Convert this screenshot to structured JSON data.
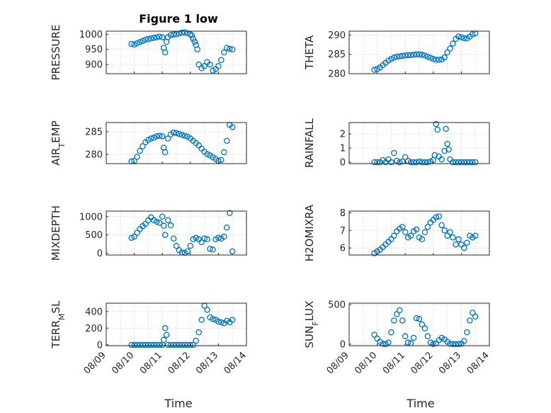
{
  "title": "Figure 1 low",
  "xlabel": "Time",
  "colors": {
    "marker": "#0072bd",
    "axis": "#262626",
    "grid": "#d4d4d4"
  },
  "chart_data": [
    {
      "type": "scatter",
      "ylabel": "PRESSURE",
      "ylabel_sub": "",
      "ylabel_rest": "",
      "xlim": [
        9.0,
        14.0
      ],
      "ylim": [
        870,
        1010
      ],
      "yticks": [
        900,
        950,
        1000
      ],
      "yticklabels": [
        "900",
        "950",
        "1000"
      ],
      "grid": true,
      "x": [
        9.9,
        10.0,
        10.1,
        10.2,
        10.3,
        10.4,
        10.5,
        10.6,
        10.7,
        10.8,
        10.9,
        11.0,
        11.05,
        11.1,
        11.15,
        11.2,
        11.3,
        11.4,
        11.5,
        11.6,
        11.7,
        11.8,
        11.9,
        12.0,
        12.05,
        12.1,
        12.15,
        12.2,
        12.25,
        12.3,
        12.4,
        12.5,
        12.6,
        12.7,
        12.8,
        12.9,
        13.0,
        13.1,
        13.2,
        13.3,
        13.4,
        13.5
      ],
      "y": [
        968,
        966,
        970,
        974,
        978,
        982,
        984,
        986,
        988,
        990,
        992,
        990,
        955,
        940,
        975,
        990,
        997,
        999,
        1000,
        1002,
        1005,
        1006,
        1003,
        1000,
        995,
        985,
        975,
        965,
        950,
        900,
        888,
        895,
        908,
        900,
        880,
        885,
        895,
        915,
        940,
        955,
        952,
        950
      ]
    },
    {
      "type": "scatter",
      "ylabel": "THETA",
      "ylabel_sub": "",
      "ylabel_rest": "",
      "xlim": [
        9.0,
        14.0
      ],
      "ylim": [
        280,
        291
      ],
      "yticks": [
        280,
        285,
        290
      ],
      "yticklabels": [
        "280",
        "285",
        "290"
      ],
      "grid": true,
      "x": [
        9.9,
        10.0,
        10.1,
        10.2,
        10.3,
        10.4,
        10.5,
        10.6,
        10.7,
        10.8,
        10.9,
        11.0,
        11.1,
        11.2,
        11.3,
        11.4,
        11.5,
        11.6,
        11.7,
        11.8,
        11.9,
        12.0,
        12.1,
        12.2,
        12.3,
        12.4,
        12.5,
        12.6,
        12.7,
        12.8,
        12.9,
        13.0,
        13.1,
        13.2,
        13.3,
        13.4,
        13.5
      ],
      "y": [
        281,
        281.2,
        281.6,
        282.2,
        282.8,
        283.4,
        283.8,
        284.2,
        284.4,
        284.5,
        284.6,
        284.7,
        284.8,
        284.8,
        284.9,
        285,
        285,
        284.9,
        284.7,
        284.4,
        284.1,
        283.8,
        283.6,
        283.6,
        283.7,
        284.2,
        285.5,
        286.5,
        287.8,
        289,
        289.6,
        289.4,
        289.2,
        289.1,
        289.6,
        290.2,
        290.4
      ]
    },
    {
      "type": "scatter",
      "ylabel": "AIR",
      "ylabel_sub": "T",
      "ylabel_rest": "EMP",
      "xlim": [
        9.0,
        14.0
      ],
      "ylim": [
        278,
        287
      ],
      "yticks": [
        280,
        285
      ],
      "yticklabels": [
        "280",
        "285"
      ],
      "grid": true,
      "x": [
        9.9,
        10.0,
        10.1,
        10.2,
        10.3,
        10.4,
        10.5,
        10.6,
        10.7,
        10.8,
        10.9,
        11.0,
        11.05,
        11.1,
        11.2,
        11.3,
        11.4,
        11.5,
        11.6,
        11.7,
        11.8,
        11.9,
        12.0,
        12.1,
        12.2,
        12.3,
        12.4,
        12.5,
        12.6,
        12.7,
        12.8,
        12.9,
        13.0,
        13.1,
        13.2,
        13.3,
        13.4,
        13.5
      ],
      "y": [
        278.5,
        278.6,
        279.5,
        280.8,
        281.8,
        282.7,
        283.2,
        283.5,
        283.7,
        284.0,
        284.1,
        284.0,
        281.5,
        280.5,
        283.5,
        284.4,
        284.8,
        284.7,
        284.5,
        284.3,
        284.1,
        283.9,
        283.5,
        283.0,
        282.5,
        282.0,
        281.3,
        280.6,
        280.1,
        279.8,
        279.4,
        279.0,
        278.6,
        278.8,
        280.5,
        283.0,
        286.5,
        286.0
      ]
    },
    {
      "type": "scatter",
      "ylabel": "RAINFALL",
      "ylabel_sub": "",
      "ylabel_rest": "",
      "xlim": [
        9.0,
        14.0
      ],
      "ylim": [
        -0.1,
        2.8
      ],
      "yticks": [
        0,
        1,
        2
      ],
      "yticklabels": [
        "0",
        "1",
        "2"
      ],
      "grid": true,
      "x": [
        9.9,
        10.0,
        10.1,
        10.2,
        10.3,
        10.4,
        10.5,
        10.6,
        10.7,
        10.8,
        10.9,
        11.0,
        11.1,
        11.2,
        11.3,
        11.4,
        11.5,
        11.6,
        11.7,
        11.8,
        11.9,
        12.0,
        12.05,
        12.1,
        12.15,
        12.2,
        12.3,
        12.4,
        12.45,
        12.5,
        12.55,
        12.6,
        12.7,
        12.8,
        12.9,
        13.0,
        13.1,
        13.2,
        13.3,
        13.4,
        13.5
      ],
      "y": [
        0,
        0,
        0,
        0.15,
        0,
        0.2,
        0,
        0.65,
        0.1,
        0,
        0.05,
        0.35,
        0.1,
        0,
        0,
        0,
        0.05,
        0,
        0,
        0,
        0.05,
        0.15,
        0.5,
        2.7,
        2.3,
        0.4,
        0.2,
        0.8,
        2.35,
        1.3,
        0.9,
        0.2,
        0,
        0,
        0,
        0,
        0,
        0,
        0,
        0,
        0
      ]
    },
    {
      "type": "scatter",
      "ylabel": "MIXDEPTH",
      "ylabel_sub": "",
      "ylabel_rest": "",
      "xlim": [
        9.0,
        14.0
      ],
      "ylim": [
        -50,
        1150
      ],
      "yticks": [
        0,
        500,
        1000
      ],
      "yticklabels": [
        "0",
        "500",
        "1000"
      ],
      "grid": true,
      "x": [
        9.9,
        10.0,
        10.1,
        10.2,
        10.3,
        10.4,
        10.5,
        10.6,
        10.7,
        10.8,
        10.9,
        11.0,
        11.05,
        11.1,
        11.2,
        11.3,
        11.4,
        11.5,
        11.6,
        11.7,
        11.8,
        11.9,
        12.0,
        12.1,
        12.2,
        12.3,
        12.4,
        12.5,
        12.6,
        12.7,
        12.8,
        12.9,
        13.0,
        13.1,
        13.2,
        13.3,
        13.4,
        13.5
      ],
      "y": [
        420,
        450,
        560,
        660,
        740,
        800,
        900,
        980,
        900,
        860,
        830,
        1000,
        750,
        500,
        900,
        760,
        400,
        200,
        80,
        20,
        10,
        50,
        200,
        380,
        420,
        380,
        300,
        400,
        380,
        120,
        100,
        380,
        420,
        400,
        450,
        700,
        1100,
        50
      ]
    },
    {
      "type": "scatter",
      "ylabel": "H2OMIXRA",
      "ylabel_sub": "",
      "ylabel_rest": "",
      "xlim": [
        9.0,
        14.0
      ],
      "ylim": [
        5.6,
        8.1
      ],
      "yticks": [
        6,
        7,
        8
      ],
      "yticklabels": [
        "6",
        "7",
        "8"
      ],
      "grid": true,
      "x": [
        9.9,
        10.0,
        10.1,
        10.2,
        10.3,
        10.4,
        10.5,
        10.6,
        10.7,
        10.8,
        10.9,
        11.0,
        11.1,
        11.2,
        11.3,
        11.4,
        11.5,
        11.6,
        11.7,
        11.8,
        11.9,
        12.0,
        12.1,
        12.2,
        12.3,
        12.4,
        12.5,
        12.6,
        12.7,
        12.8,
        12.9,
        13.0,
        13.1,
        13.2,
        13.3,
        13.4,
        13.5
      ],
      "y": [
        5.7,
        5.8,
        5.9,
        6.05,
        6.2,
        6.35,
        6.5,
        6.7,
        6.95,
        7.1,
        7.2,
        6.9,
        6.6,
        6.7,
        6.95,
        7.05,
        6.6,
        6.5,
        6.9,
        7.2,
        7.45,
        7.6,
        7.75,
        7.8,
        7.3,
        7.0,
        6.7,
        6.9,
        6.6,
        6.2,
        6.5,
        6.2,
        6.0,
        6.3,
        6.7,
        6.6,
        6.7
      ]
    },
    {
      "type": "scatter",
      "ylabel": "TERR",
      "ylabel_sub": "M",
      "ylabel_rest": "SL",
      "xlim": [
        9.0,
        14.0
      ],
      "ylim": [
        -10,
        500
      ],
      "yticks": [
        0,
        200,
        400
      ],
      "yticklabels": [
        "0",
        "200",
        "400"
      ],
      "grid": true,
      "x": [
        9.9,
        10.0,
        10.1,
        10.2,
        10.3,
        10.4,
        10.5,
        10.6,
        10.7,
        10.8,
        10.9,
        11.0,
        11.05,
        11.1,
        11.15,
        11.2,
        11.3,
        11.4,
        11.5,
        11.6,
        11.7,
        11.8,
        11.9,
        12.0,
        12.1,
        12.2,
        12.3,
        12.4,
        12.5,
        12.6,
        12.7,
        12.8,
        12.9,
        13.0,
        13.1,
        13.2,
        13.3,
        13.4,
        13.5
      ],
      "y": [
        0,
        0,
        0,
        0,
        0,
        0,
        0,
        0,
        0,
        0,
        0,
        0,
        60,
        200,
        120,
        0,
        0,
        0,
        0,
        0,
        0,
        0,
        0,
        0,
        0,
        50,
        150,
        300,
        470,
        420,
        330,
        310,
        300,
        280,
        270,
        260,
        290,
        270,
        300
      ]
    },
    {
      "type": "scatter",
      "ylabel": "SUN",
      "ylabel_sub": "F",
      "ylabel_rest": "LUX",
      "xlim": [
        9.0,
        14.0
      ],
      "ylim": [
        -20,
        520
      ],
      "yticks": [
        0,
        500
      ],
      "yticklabels": [
        "0",
        "500"
      ],
      "grid": true,
      "x": [
        9.9,
        10.0,
        10.1,
        10.2,
        10.3,
        10.4,
        10.5,
        10.6,
        10.7,
        10.8,
        10.9,
        11.0,
        11.1,
        11.2,
        11.3,
        11.4,
        11.5,
        11.6,
        11.7,
        11.8,
        11.9,
        12.0,
        12.1,
        12.2,
        12.3,
        12.4,
        12.5,
        12.6,
        12.7,
        12.8,
        12.9,
        13.0,
        13.1,
        13.2,
        13.3,
        13.4,
        13.5
      ],
      "y": [
        120,
        70,
        30,
        5,
        0,
        20,
        150,
        300,
        380,
        430,
        300,
        100,
        20,
        10,
        80,
        330,
        320,
        250,
        200,
        100,
        20,
        0,
        10,
        50,
        80,
        60,
        30,
        5,
        0,
        0,
        0,
        5,
        40,
        150,
        300,
        400,
        350
      ]
    }
  ],
  "x_ticklabels": [
    "08/09",
    "08/10",
    "08/11",
    "08/12",
    "08/13",
    "08/14"
  ],
  "x_tickvalues": [
    9,
    10,
    11,
    12,
    13,
    14
  ]
}
